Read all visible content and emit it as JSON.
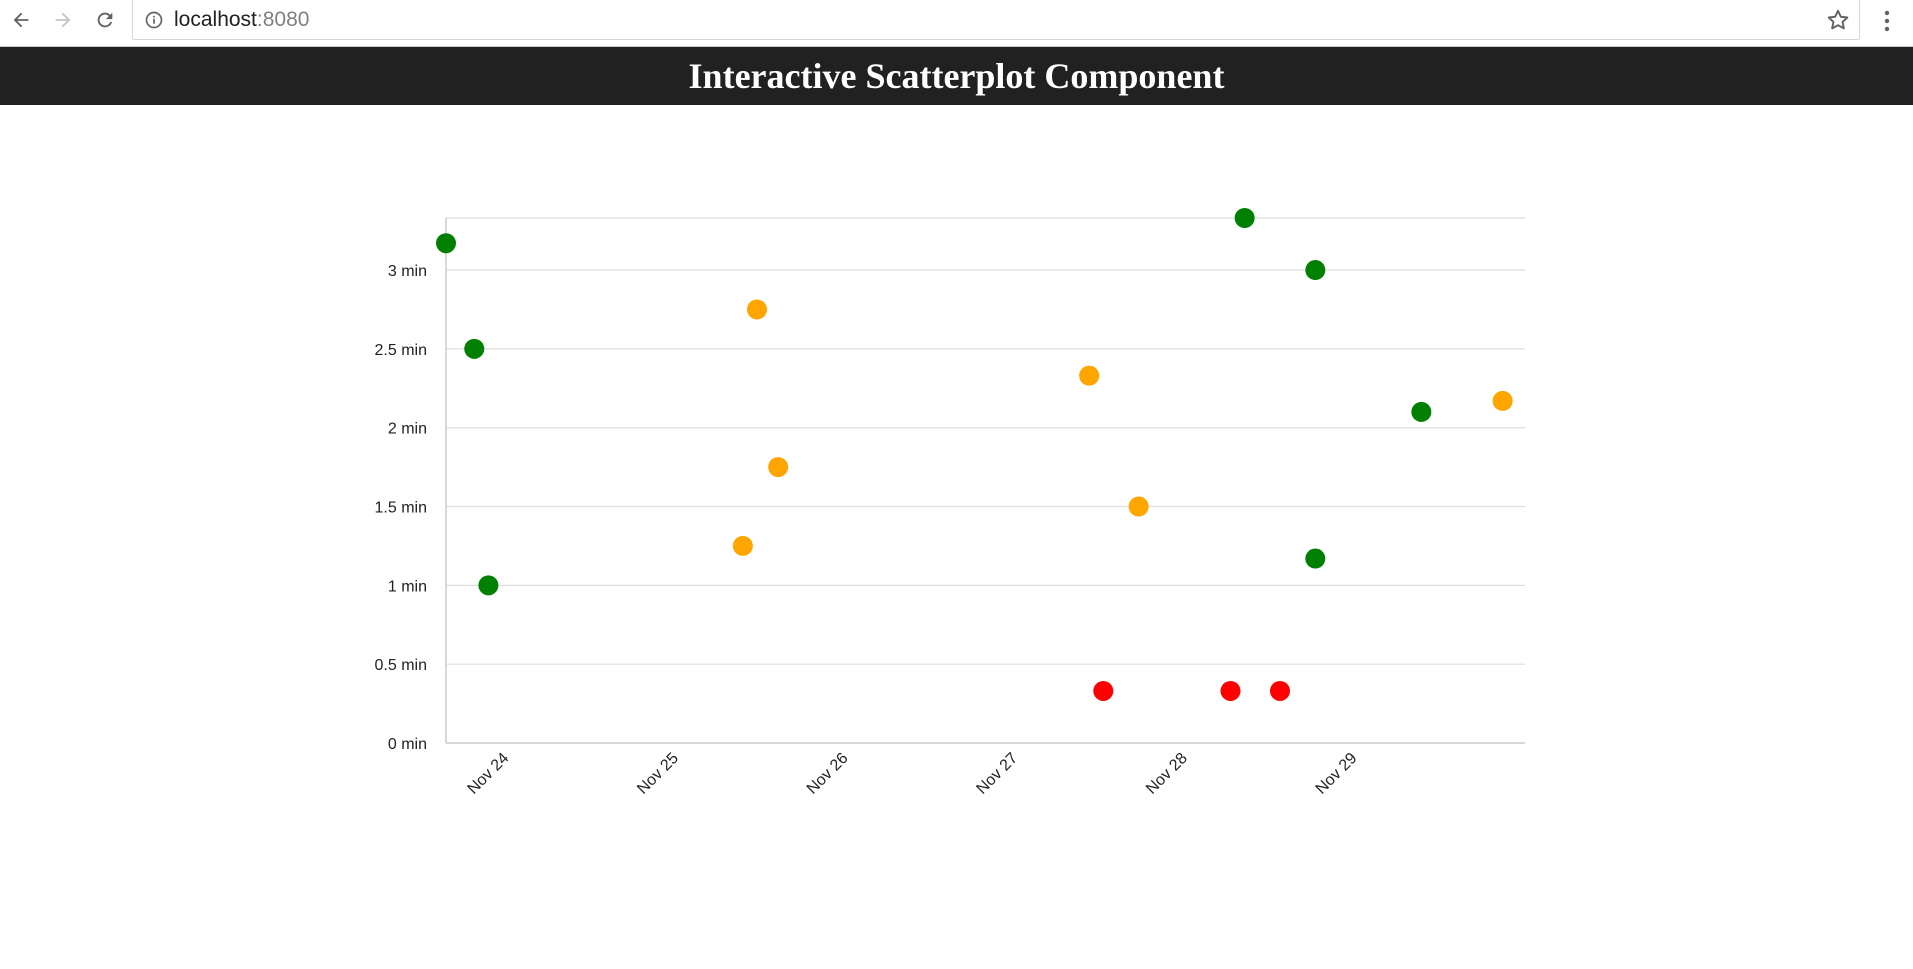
{
  "browser": {
    "url_host": "localhost",
    "url_port": ":8080"
  },
  "header": {
    "title": "Interactive Scatterplot Component"
  },
  "colors": {
    "header_bg": "#212121",
    "green": "#008000",
    "orange": "#FFA500",
    "red": "#FF0000",
    "grid": "#dddddd"
  },
  "chart_data": {
    "type": "scatter",
    "title": "",
    "xlabel": "",
    "ylabel": "",
    "x_axis": {
      "type": "time",
      "range": [
        "2017-11-23 15:00",
        "2017-11-29 23:40"
      ],
      "tick_labels": [
        "Nov 24",
        "Nov 25",
        "Nov 26",
        "Nov 27",
        "Nov 28",
        "Nov 29"
      ],
      "tick_values": [
        "2017-11-24",
        "2017-11-25",
        "2017-11-26",
        "2017-11-27",
        "2017-11-28",
        "2017-11-29"
      ]
    },
    "y_axis": {
      "unit": "min",
      "ylim": [
        0,
        3.33
      ],
      "tick_values": [
        0,
        0.5,
        1,
        1.5,
        2,
        2.5,
        3
      ],
      "tick_labels": [
        "0 min",
        "0.5 min",
        "1 min",
        "1.5 min",
        "2 min",
        "2.5 min",
        "3 min"
      ]
    },
    "grid": true,
    "legend": "none",
    "points": [
      {
        "x": "2017-11-23 15:00",
        "y": 3.17,
        "color": "green"
      },
      {
        "x": "2017-11-23 19:00",
        "y": 2.5,
        "color": "green"
      },
      {
        "x": "2017-11-23 21:00",
        "y": 1.0,
        "color": "green"
      },
      {
        "x": "2017-11-25 09:00",
        "y": 1.25,
        "color": "orange"
      },
      {
        "x": "2017-11-25 11:00",
        "y": 2.75,
        "color": "orange"
      },
      {
        "x": "2017-11-25 14:00",
        "y": 1.75,
        "color": "orange"
      },
      {
        "x": "2017-11-27 10:00",
        "y": 2.33,
        "color": "orange"
      },
      {
        "x": "2017-11-27 12:00",
        "y": 0.33,
        "color": "red"
      },
      {
        "x": "2017-11-27 17:00",
        "y": 1.5,
        "color": "orange"
      },
      {
        "x": "2017-11-28 06:00",
        "y": 0.33,
        "color": "red"
      },
      {
        "x": "2017-11-28 08:00",
        "y": 3.33,
        "color": "green"
      },
      {
        "x": "2017-11-28 13:00",
        "y": 0.33,
        "color": "red"
      },
      {
        "x": "2017-11-28 18:00",
        "y": 3.0,
        "color": "green"
      },
      {
        "x": "2017-11-28 18:00",
        "y": 1.17,
        "color": "green"
      },
      {
        "x": "2017-11-29 09:00",
        "y": 2.1,
        "color": "green"
      },
      {
        "x": "2017-11-29 20:30",
        "y": 2.17,
        "color": "orange"
      }
    ]
  }
}
